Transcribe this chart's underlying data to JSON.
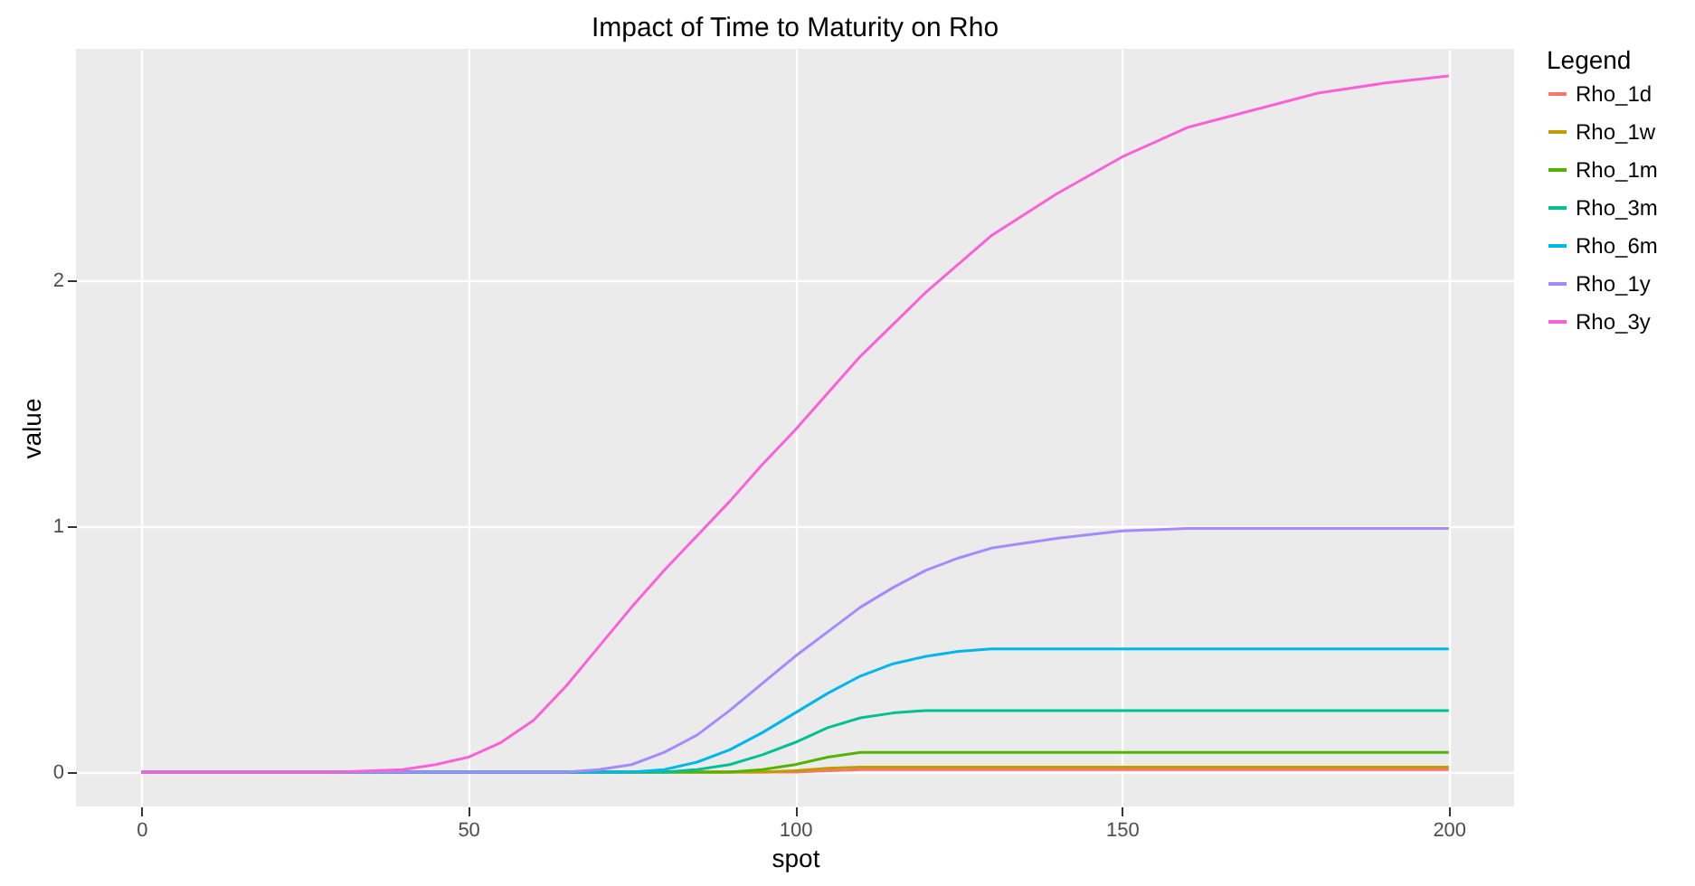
{
  "chart_data": {
    "type": "line",
    "title": "Impact of Time to Maturity on Rho",
    "xlabel": "spot",
    "ylabel": "value",
    "legend_title": "Legend",
    "legend": "right",
    "grid": true,
    "xlim": [
      -10,
      210
    ],
    "ylim": [
      -0.14,
      2.94
    ],
    "xticks": [
      0,
      50,
      100,
      150,
      200
    ],
    "yticks": [
      0,
      1,
      2
    ],
    "series": [
      {
        "name": "Rho_1d",
        "color": "#f8766d",
        "x": [
          0,
          100,
          105,
          110,
          200
        ],
        "values": [
          0,
          0,
          0.005,
          0.01,
          0.01
        ]
      },
      {
        "name": "Rho_1w",
        "color": "#c49a00",
        "x": [
          0,
          95,
          100,
          105,
          110,
          200
        ],
        "values": [
          0,
          0,
          0.005,
          0.015,
          0.02,
          0.02
        ]
      },
      {
        "name": "Rho_1m",
        "color": "#53b400",
        "x": [
          0,
          90,
          95,
          100,
          105,
          110,
          115,
          200
        ],
        "values": [
          0,
          0,
          0.01,
          0.03,
          0.06,
          0.08,
          0.08,
          0.08
        ]
      },
      {
        "name": "Rho_3m",
        "color": "#00c094",
        "x": [
          0,
          80,
          85,
          90,
          95,
          100,
          105,
          110,
          115,
          120,
          200
        ],
        "values": [
          0,
          0,
          0.01,
          0.03,
          0.07,
          0.12,
          0.18,
          0.22,
          0.24,
          0.25,
          0.25
        ]
      },
      {
        "name": "Rho_6m",
        "color": "#00b6eb",
        "x": [
          0,
          75,
          80,
          85,
          90,
          95,
          100,
          105,
          110,
          115,
          120,
          125,
          130,
          200
        ],
        "values": [
          0,
          0,
          0.01,
          0.04,
          0.09,
          0.16,
          0.24,
          0.32,
          0.39,
          0.44,
          0.47,
          0.49,
          0.5,
          0.5
        ]
      },
      {
        "name": "Rho_1y",
        "color": "#a58aff",
        "x": [
          0,
          65,
          70,
          75,
          80,
          85,
          90,
          95,
          100,
          105,
          110,
          115,
          120,
          125,
          130,
          140,
          150,
          160,
          200
        ],
        "values": [
          0,
          0,
          0.01,
          0.03,
          0.08,
          0.15,
          0.25,
          0.36,
          0.47,
          0.57,
          0.67,
          0.75,
          0.82,
          0.87,
          0.91,
          0.95,
          0.98,
          0.99,
          0.99
        ]
      },
      {
        "name": "Rho_3y",
        "color": "#fb61d7",
        "x": [
          0,
          30,
          40,
          45,
          50,
          55,
          60,
          65,
          70,
          75,
          80,
          85,
          90,
          95,
          100,
          110,
          120,
          130,
          140,
          150,
          160,
          170,
          180,
          190,
          200
        ],
        "values": [
          0,
          0,
          0.01,
          0.03,
          0.06,
          0.12,
          0.21,
          0.35,
          0.51,
          0.67,
          0.82,
          0.96,
          1.1,
          1.25,
          1.39,
          1.69,
          1.95,
          2.18,
          2.35,
          2.5,
          2.62,
          2.69,
          2.76,
          2.8,
          2.83
        ]
      }
    ]
  }
}
